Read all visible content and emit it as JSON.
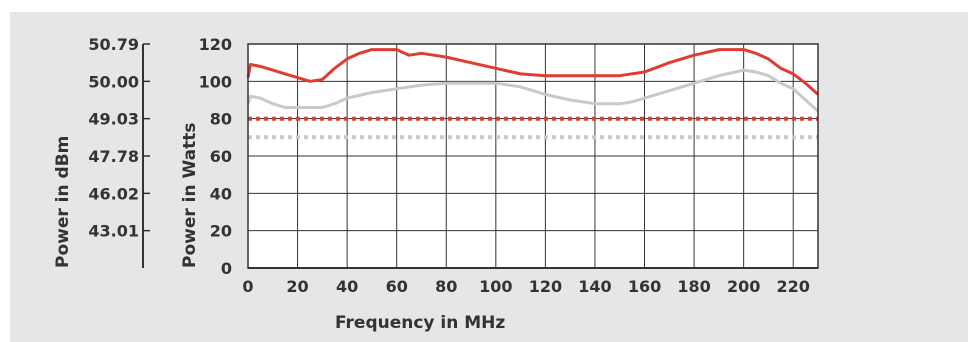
{
  "chart_data": {
    "type": "line",
    "xlabel": "Frequency in MHz",
    "ylabel": "Power in Watts",
    "y2label": "Power in dBm",
    "xlim": [
      0,
      230
    ],
    "ylim": [
      0,
      120
    ],
    "xticks": [
      0,
      20,
      40,
      60,
      80,
      100,
      120,
      140,
      160,
      180,
      200,
      220
    ],
    "yticks": [
      0,
      20,
      40,
      60,
      80,
      100,
      120
    ],
    "y2ticks": [
      {
        "label": "50.79",
        "watts": 120
      },
      {
        "label": "50.00",
        "watts": 100
      },
      {
        "label": "49.03",
        "watts": 80
      },
      {
        "label": "47.78",
        "watts": 60
      },
      {
        "label": "46.02",
        "watts": 40
      },
      {
        "label": "43.01",
        "watts": 20
      }
    ],
    "grid": true,
    "series": [
      {
        "color": "#e03c31",
        "style": "solid",
        "x": [
          0,
          1,
          5,
          10,
          15,
          20,
          25,
          30,
          35,
          40,
          45,
          50,
          55,
          60,
          65,
          70,
          75,
          80,
          90,
          100,
          110,
          120,
          130,
          140,
          150,
          160,
          170,
          180,
          190,
          200,
          205,
          210,
          215,
          220,
          225,
          230
        ],
        "values": [
          102,
          109,
          108,
          106,
          104,
          102,
          100,
          101,
          107,
          112,
          115,
          117,
          117,
          117,
          114,
          115,
          114,
          113,
          110,
          107,
          104,
          103,
          103,
          103,
          103,
          105,
          110,
          114,
          117,
          117,
          115,
          112,
          107,
          104,
          99,
          93
        ]
      },
      {
        "color": "#c9c9c9",
        "style": "solid",
        "x": [
          0,
          1,
          5,
          10,
          15,
          20,
          25,
          30,
          35,
          40,
          50,
          60,
          70,
          80,
          90,
          100,
          110,
          120,
          130,
          140,
          150,
          155,
          160,
          170,
          180,
          190,
          200,
          205,
          210,
          215,
          220,
          225,
          230
        ],
        "values": [
          88,
          92,
          91,
          88,
          86,
          86,
          86,
          86,
          88,
          91,
          94,
          96,
          98,
          99,
          99,
          99,
          97,
          93,
          90,
          88,
          88,
          89,
          91,
          95,
          99,
          103,
          106,
          105,
          103,
          99,
          96,
          90,
          84
        ]
      },
      {
        "color": "#e03c31",
        "style": "dotted",
        "x": [
          0,
          230
        ],
        "values": [
          80,
          80
        ]
      },
      {
        "color": "#c9c9c9",
        "style": "dotted",
        "x": [
          0,
          230
        ],
        "values": [
          70,
          70
        ]
      }
    ]
  }
}
